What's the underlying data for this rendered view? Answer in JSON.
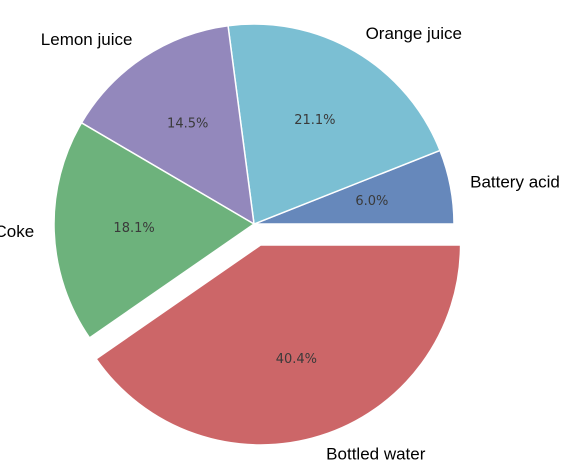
{
  "chart_data": {
    "type": "pie",
    "title": "",
    "slices": [
      {
        "label": "Battery acid",
        "value": 6.0,
        "pct_label": "6.0%",
        "color": "#6688BB",
        "exploded": false
      },
      {
        "label": "Orange juice",
        "value": 21.1,
        "pct_label": "21.1%",
        "color": "#7BBFD3",
        "exploded": false
      },
      {
        "label": "Lemon juice",
        "value": 14.5,
        "pct_label": "14.5%",
        "color": "#9388BC",
        "exploded": false
      },
      {
        "label": "Coke",
        "value": 18.1,
        "pct_label": "18.1%",
        "color": "#6DB27C",
        "exploded": false
      },
      {
        "label": "Bottled water",
        "value": 40.4,
        "pct_label": "40.4%",
        "color": "#CC6668",
        "exploded": true
      }
    ],
    "start_angle_deg": 0,
    "direction": "counterclockwise",
    "edge_color": "#ffffff"
  }
}
